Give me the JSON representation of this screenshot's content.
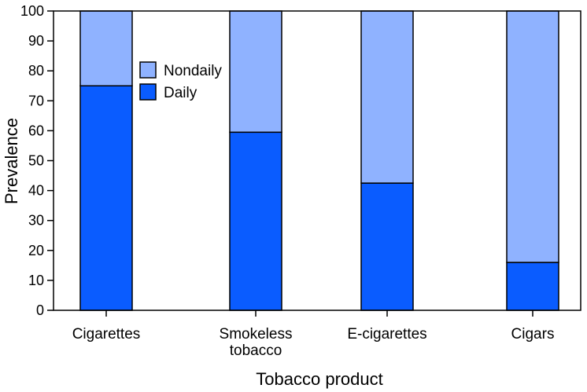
{
  "chart_data": {
    "type": "bar",
    "stacked": true,
    "categories": [
      [
        "Cigarettes"
      ],
      [
        "Smokeless",
        "tobacco"
      ],
      [
        "E-cigarettes"
      ],
      [
        "Cigars"
      ]
    ],
    "series": [
      {
        "name": "Daily",
        "values": [
          75,
          59.5,
          42.5,
          16
        ],
        "color": "#0a5cff"
      },
      {
        "name": "Nondaily",
        "values": [
          25,
          40.5,
          57.5,
          84
        ],
        "color": "#8fb2ff"
      }
    ],
    "title": "",
    "xlabel": "Tobacco product",
    "ylabel": "Prevalence",
    "ylim": [
      0,
      100
    ],
    "yticks": [
      0,
      10,
      20,
      30,
      40,
      50,
      60,
      70,
      80,
      90,
      100
    ],
    "legend": {
      "placement": "top-left",
      "order": [
        "Nondaily",
        "Daily"
      ]
    },
    "grid": false
  }
}
